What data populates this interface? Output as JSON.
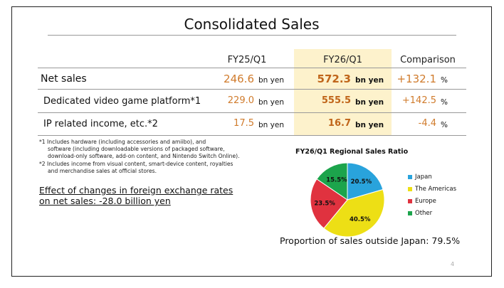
{
  "slide": {
    "title": "Consolidated Sales",
    "page_number": "4"
  },
  "table": {
    "headers": {
      "q25": "FY25/Q1",
      "q26": "FY26/Q1",
      "comparison": "Comparison"
    },
    "rows": [
      {
        "label": "Net sales",
        "fy25": "246.6",
        "fy25_unit": "bn yen",
        "fy26": "572.3",
        "fy26_unit": "bn yen",
        "comparison": "+132.1",
        "comparison_unit": "%"
      },
      {
        "label": "Dedicated video game platform*1",
        "fy25": "229.0",
        "fy25_unit": "bn yen",
        "fy26": "555.5",
        "fy26_unit": "bn yen",
        "comparison": "+142.5",
        "comparison_unit": "%"
      },
      {
        "label": "IP related income, etc.*2",
        "fy25": "17.5",
        "fy25_unit": "bn yen",
        "fy26": "16.7",
        "fy26_unit": "bn yen",
        "comparison": "-4.4",
        "comparison_unit": "%"
      }
    ]
  },
  "notes": {
    "n1_line1": "*1 Includes hardware (including accessories and amiibo), and",
    "n1_line2": "software (including downloadable versions of packaged software,",
    "n1_line3": "download-only software, add-on content, and Nintendo Switch Online).",
    "n2_line1": "*2 Includes income from visual content, smart-device content, royalties",
    "n2_line2": "and merchandise sales at official stores."
  },
  "fx": {
    "line1": "Effect of changes in foreign exchange rates",
    "line2": "on net sales: -28.0 billion yen"
  },
  "chart_data": {
    "type": "pie",
    "title": "FY26/Q1 Regional Sales Ratio",
    "slices": [
      {
        "name": "Japan",
        "value": 20.5,
        "label": "20.5%",
        "color": "#29a3dc"
      },
      {
        "name": "The Americas",
        "value": 40.5,
        "label": "40.5%",
        "color": "#eddf15"
      },
      {
        "name": "Europe",
        "value": 23.5,
        "label": "23.5%",
        "color": "#e0323f"
      },
      {
        "name": "Other",
        "value": 15.5,
        "label": "15.5%",
        "color": "#1ca44c"
      }
    ],
    "legend_position": "right"
  },
  "proportion_text": "Proportion of sales outside Japan: 79.5%"
}
